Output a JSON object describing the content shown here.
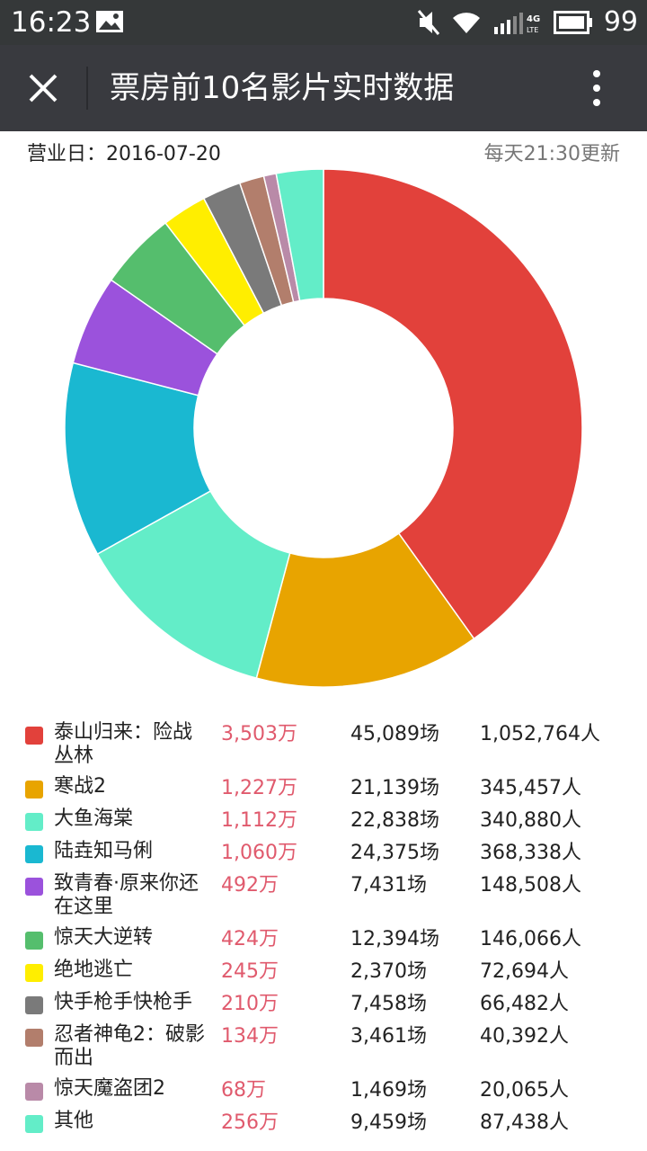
{
  "status_bar": {
    "time": "16:23",
    "battery": "99",
    "network": "4G LTE",
    "icons": [
      "image-icon",
      "mute-icon",
      "wifi-icon",
      "signal-icon",
      "battery-icon"
    ]
  },
  "nav": {
    "title": "票房前10名影片实时数据",
    "close_icon": "close-icon",
    "more_icon": "more-vertical-icon"
  },
  "info": {
    "date_text": "营业日：2016-07-20",
    "update_text": "每天21:30更新"
  },
  "chart_data": {
    "type": "pie",
    "title": "",
    "unit": "万",
    "categories": [
      "泰山归来：险战丛林",
      "寒战2",
      "大鱼海棠",
      "陆垚知马俐",
      "致青春·原来你还在这里",
      "惊天大逆转",
      "绝地逃亡",
      "快手枪手快枪手",
      "忍者神龟2：破影而出",
      "惊天魔盗团2",
      "其他"
    ],
    "values": [
      3503,
      1227,
      1112,
      1060,
      492,
      424,
      245,
      210,
      134,
      68,
      256
    ],
    "colors": [
      "#e2413b",
      "#e8a400",
      "#63edc8",
      "#1ab8d1",
      "#9b52dc",
      "#55be6d",
      "#ffee00",
      "#7a7a7a",
      "#b27e6c",
      "#b98aa8",
      "#63edc8"
    ]
  },
  "table": {
    "rows": [
      {
        "name": "泰山归来：险战丛林",
        "box": "3,503万",
        "shows": "45,089场",
        "people": "1,052,764人",
        "color": "#e2413b"
      },
      {
        "name": "寒战2",
        "box": "1,227万",
        "shows": "21,139场",
        "people": "345,457人",
        "color": "#e8a400"
      },
      {
        "name": "大鱼海棠",
        "box": "1,112万",
        "shows": "22,838场",
        "people": "340,880人",
        "color": "#63edc8"
      },
      {
        "name": "陆垚知马俐",
        "box": "1,060万",
        "shows": "24,375场",
        "people": "368,338人",
        "color": "#1ab8d1"
      },
      {
        "name": "致青春·原来你还在这里",
        "box": "492万",
        "shows": "7,431场",
        "people": "148,508人",
        "color": "#9b52dc"
      },
      {
        "name": "惊天大逆转",
        "box": "424万",
        "shows": "12,394场",
        "people": "146,066人",
        "color": "#55be6d"
      },
      {
        "name": "绝地逃亡",
        "box": "245万",
        "shows": "2,370场",
        "people": "72,694人",
        "color": "#ffee00"
      },
      {
        "name": "快手枪手快枪手",
        "box": "210万",
        "shows": "7,458场",
        "people": "66,482人",
        "color": "#7a7a7a"
      },
      {
        "name": "忍者神龟2：破影而出",
        "box": "134万",
        "shows": "3,461场",
        "people": "40,392人",
        "color": "#b27e6c"
      },
      {
        "name": "惊天魔盗团2",
        "box": "68万",
        "shows": "1,469场",
        "people": "20,065人",
        "color": "#b98aa8"
      },
      {
        "name": "其他",
        "box": "256万",
        "shows": "9,459场",
        "people": "87,438人",
        "color": "#63edc8"
      }
    ]
  }
}
